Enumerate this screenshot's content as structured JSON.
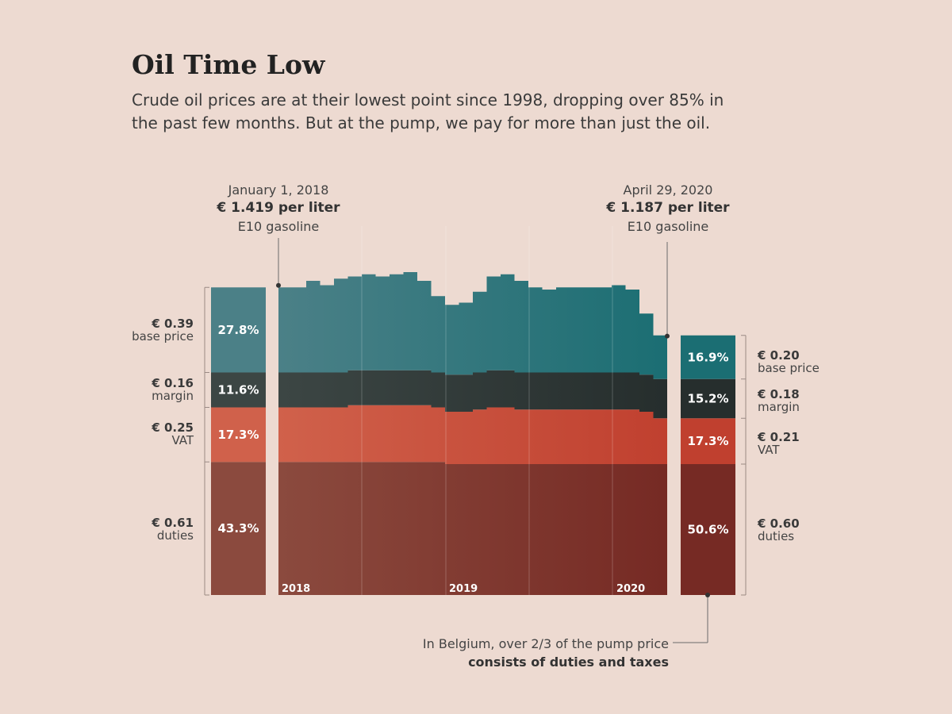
{
  "header": {
    "title": "Oil Time Low",
    "subtitle": "Crude oil prices are at their lowest point since 1998, dropping over 85% in the past few months. But at the pump, we pay for more than just the oil."
  },
  "annotations": {
    "start": {
      "date": "January 1, 2018",
      "price": "€ 1.419 per liter",
      "fuel": "E10 gasoline"
    },
    "end": {
      "date": "April 29, 2020",
      "price": "€ 1.187 per liter",
      "fuel": "E10 gasoline"
    }
  },
  "note": {
    "line1": "In Belgium, over 2/3 of the pump price",
    "line2": "consists of duties and taxes"
  },
  "colors": {
    "background": "#eddad1",
    "base_start": "#4b8087",
    "base_end": "#1b6e73",
    "margin_start": "#3c4644",
    "margin_end": "#262e2d",
    "vat_start": "#d0614b",
    "vat_end": "#c0402f",
    "duties_start": "#8b4a3e",
    "duties_end": "#762a24"
  },
  "chart_data": {
    "type": "area",
    "stacked": true,
    "x_tick_labels": [
      "2018",
      "2019",
      "2020"
    ],
    "component_order": [
      "duties",
      "vat",
      "margin",
      "base_price"
    ],
    "start_breakdown": {
      "date": "2018-01-01",
      "total": 1.419,
      "components": [
        {
          "key": "base_price",
          "value_label": "€ 0.39",
          "name": "base price",
          "percent_label": "27.8%",
          "value": 0.39
        },
        {
          "key": "margin",
          "value_label": "€ 0.16",
          "name": "margin",
          "percent_label": "11.6%",
          "value": 0.16
        },
        {
          "key": "vat",
          "value_label": "€ 0.25",
          "name": "VAT",
          "percent_label": "17.3%",
          "value": 0.25
        },
        {
          "key": "duties",
          "value_label": "€ 0.61",
          "name": "duties",
          "percent_label": "43.3%",
          "value": 0.61
        }
      ]
    },
    "end_breakdown": {
      "date": "2020-04-29",
      "total": 1.187,
      "components": [
        {
          "key": "base_price",
          "value_label": "€ 0.20",
          "name": "base price",
          "percent_label": "16.9%",
          "value": 0.2
        },
        {
          "key": "margin",
          "value_label": "€ 0.18",
          "name": "margin",
          "percent_label": "15.2%",
          "value": 0.18
        },
        {
          "key": "vat",
          "value_label": "€ 0.21",
          "name": "VAT",
          "percent_label": "17.3%",
          "value": 0.21
        },
        {
          "key": "duties",
          "value_label": "€ 0.60",
          "name": "duties",
          "percent_label": "50.6%",
          "value": 0.6
        }
      ]
    },
    "series_date": [
      "2018-01",
      "2018-02",
      "2018-03",
      "2018-04",
      "2018-05",
      "2018-06",
      "2018-07",
      "2018-08",
      "2018-09",
      "2018-10",
      "2018-11",
      "2018-12",
      "2019-01",
      "2019-02",
      "2019-03",
      "2019-04",
      "2019-05",
      "2019-06",
      "2019-07",
      "2019-08",
      "2019-09",
      "2019-10",
      "2019-11",
      "2019-12",
      "2020-01",
      "2020-02",
      "2020-03",
      "2020-04"
    ],
    "series": [
      {
        "name": "duties",
        "values": [
          0.61,
          0.61,
          0.61,
          0.61,
          0.61,
          0.61,
          0.61,
          0.61,
          0.61,
          0.61,
          0.61,
          0.61,
          0.6,
          0.6,
          0.6,
          0.6,
          0.6,
          0.6,
          0.6,
          0.6,
          0.6,
          0.6,
          0.6,
          0.6,
          0.6,
          0.6,
          0.6,
          0.6
        ]
      },
      {
        "name": "VAT",
        "values": [
          0.25,
          0.25,
          0.25,
          0.25,
          0.25,
          0.26,
          0.26,
          0.26,
          0.26,
          0.26,
          0.26,
          0.25,
          0.24,
          0.24,
          0.25,
          0.26,
          0.26,
          0.25,
          0.25,
          0.25,
          0.25,
          0.25,
          0.25,
          0.25,
          0.25,
          0.25,
          0.24,
          0.21
        ]
      },
      {
        "name": "margin",
        "values": [
          0.16,
          0.16,
          0.16,
          0.16,
          0.16,
          0.16,
          0.16,
          0.16,
          0.16,
          0.16,
          0.16,
          0.16,
          0.17,
          0.17,
          0.17,
          0.17,
          0.17,
          0.17,
          0.17,
          0.17,
          0.17,
          0.17,
          0.17,
          0.17,
          0.17,
          0.17,
          0.17,
          0.18
        ]
      },
      {
        "name": "base price",
        "values": [
          0.39,
          0.39,
          0.42,
          0.4,
          0.43,
          0.43,
          0.44,
          0.43,
          0.44,
          0.45,
          0.41,
          0.35,
          0.32,
          0.33,
          0.37,
          0.43,
          0.44,
          0.42,
          0.39,
          0.38,
          0.39,
          0.39,
          0.39,
          0.39,
          0.4,
          0.38,
          0.28,
          0.2
        ]
      }
    ]
  }
}
